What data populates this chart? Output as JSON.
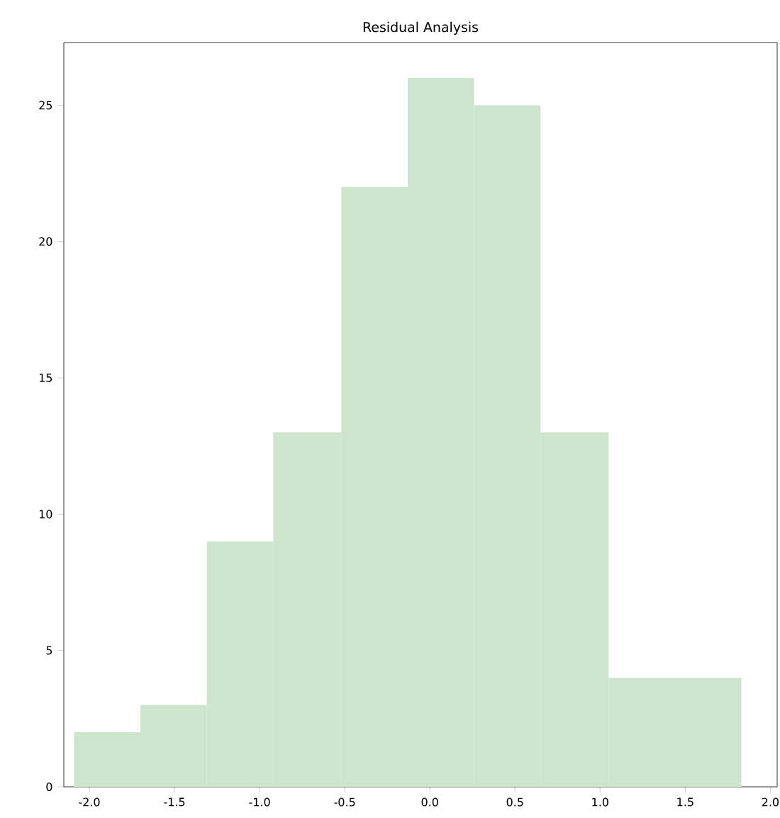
{
  "chart_data": {
    "type": "histogram",
    "title": "Residual Analysis",
    "bins": [
      -2.09,
      -1.7,
      -1.31,
      -0.92,
      -0.52,
      -0.13,
      0.26,
      0.65,
      1.05,
      1.44,
      1.83
    ],
    "values": [
      2,
      3,
      9,
      13,
      22,
      26,
      25,
      13,
      4,
      4
    ],
    "color": "#cce5cc",
    "xlim": [
      -2.15,
      2.04
    ],
    "ylim": [
      0,
      27.3
    ],
    "xticks": [
      {
        "value": -2,
        "label": "-2.0"
      },
      -1.5,
      {
        "value": -1,
        "label": "-1.0"
      },
      -0.5,
      {
        "value": 0,
        "label": "0.0"
      },
      0.5,
      {
        "value": 1,
        "label": "1.0"
      },
      1.5,
      {
        "value": 2,
        "label": "2.0"
      }
    ],
    "yticks": [
      0,
      5,
      10,
      15,
      20,
      25
    ],
    "grid": false
  }
}
